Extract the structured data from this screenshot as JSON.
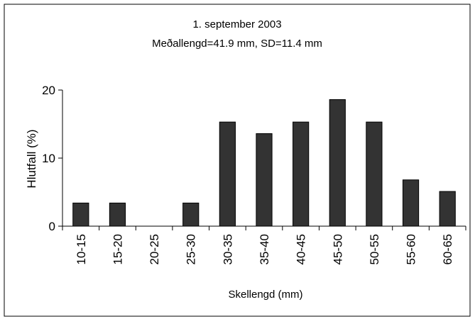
{
  "chart_data": {
    "type": "bar",
    "title": "1. september 2003",
    "subtitle": "Meðallengd=41.9 mm, SD=11.4 mm",
    "xlabel": "Skellengd (mm)",
    "ylabel": "Hlutfall (%)",
    "ylim": [
      0,
      20
    ],
    "yticks": [
      0,
      10,
      20
    ],
    "grid": false,
    "categories": [
      "10-15",
      "15-20",
      "20-25",
      "25-30",
      "30-35",
      "35-40",
      "40-45",
      "45-50",
      "50-55",
      "55-60",
      "60-65"
    ],
    "values": [
      3.4,
      3.4,
      0,
      3.4,
      15.3,
      13.6,
      15.3,
      18.6,
      15.3,
      6.8,
      5.1
    ],
    "bar_color": "#333333"
  }
}
